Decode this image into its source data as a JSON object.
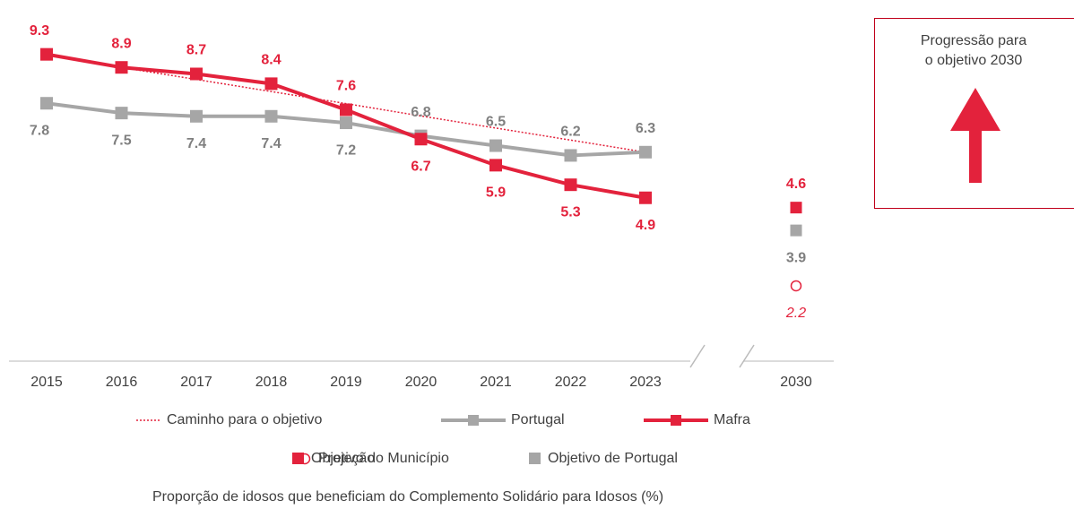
{
  "chart_data": {
    "type": "line",
    "categories": [
      "2015",
      "2016",
      "2017",
      "2018",
      "2019",
      "2020",
      "2021",
      "2022",
      "2023",
      "2030"
    ],
    "ylim": [
      0,
      10.5
    ],
    "x_label": "Proporção de idosos que beneficiam do Complemento Solidário para Idosos (%)",
    "annotation": [
      "Progressão para",
      "o objetivo 2030"
    ],
    "series": [
      {
        "name": "Caminho para o objetivo",
        "color": "#e3223c",
        "style": "dotted",
        "marker": "none",
        "values": [
          null,
          8.9,
          8.53,
          8.16,
          7.79,
          7.41,
          7.04,
          6.67,
          6.3,
          null
        ]
      },
      {
        "name": "Portugal",
        "color": "#a6a6a6",
        "label_color": "#7f7f7f",
        "style": "solid",
        "marker": "square",
        "labels": true,
        "values": [
          7.8,
          7.5,
          7.4,
          7.4,
          7.2,
          6.8,
          6.5,
          6.2,
          6.3,
          null
        ]
      },
      {
        "name": "Mafra",
        "color": "#e3223c",
        "label_color": "#e3223c",
        "style": "solid",
        "marker": "square",
        "labels": true,
        "values": [
          9.3,
          8.9,
          8.7,
          8.4,
          7.6,
          6.7,
          5.9,
          5.3,
          4.9,
          null
        ]
      },
      {
        "name": "Projeção",
        "color": "#e3223c",
        "label_color": "#e3223c",
        "style": "none",
        "marker": "circle",
        "labels": true,
        "italic": true,
        "values": [
          null,
          null,
          null,
          null,
          null,
          null,
          null,
          null,
          null,
          2.2
        ]
      },
      {
        "name": "Objetivo do Município",
        "color": "#e3223c",
        "label_color": "#e3223c",
        "style": "none",
        "marker": "square",
        "labels": true,
        "values": [
          null,
          null,
          null,
          null,
          null,
          null,
          null,
          null,
          null,
          4.6
        ]
      },
      {
        "name": "Objetivo de Portugal",
        "color": "#a6a6a6",
        "label_color": "#7f7f7f",
        "style": "none",
        "marker": "square",
        "labels": true,
        "values": [
          null,
          null,
          null,
          null,
          null,
          null,
          null,
          null,
          null,
          3.9
        ]
      }
    ]
  }
}
